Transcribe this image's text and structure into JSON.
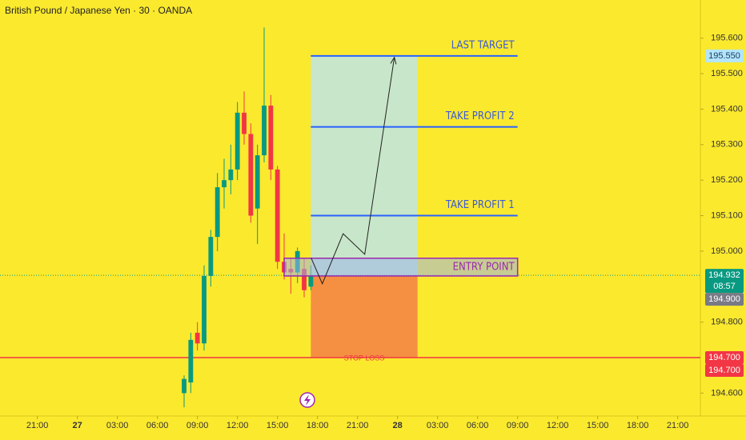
{
  "chart_data": {
    "type": "candlestick",
    "title": "British Pound / Japanese Yen · 30 · OANDA",
    "x": [
      8,
      8.5,
      9,
      9.5,
      10,
      10.5,
      11,
      11.5,
      12,
      12.5,
      13,
      13.5,
      14,
      14.5,
      15,
      15.5,
      16,
      16.5,
      17,
      17.5
    ],
    "open": [
      194.6,
      194.63,
      194.77,
      194.74,
      194.93,
      195.04,
      195.18,
      195.2,
      195.23,
      195.39,
      195.33,
      195.12,
      195.27,
      195.41,
      195.23,
      194.97,
      194.95,
      194.94,
      194.95,
      194.9
    ],
    "high": [
      194.65,
      194.77,
      194.8,
      194.96,
      195.06,
      195.22,
      195.26,
      195.3,
      195.42,
      195.45,
      195.36,
      195.3,
      195.63,
      195.44,
      195.24,
      195.05,
      194.98,
      195.01,
      194.98,
      194.96
    ],
    "low": [
      194.56,
      194.6,
      194.72,
      194.72,
      194.9,
      195.0,
      195.12,
      195.16,
      195.2,
      195.3,
      195.08,
      195.02,
      195.25,
      195.2,
      194.95,
      194.92,
      194.88,
      194.91,
      194.87,
      194.89
    ],
    "close": [
      194.64,
      194.75,
      194.74,
      194.93,
      195.04,
      195.18,
      195.2,
      195.23,
      195.39,
      195.33,
      195.1,
      195.27,
      195.41,
      195.23,
      194.97,
      194.94,
      194.94,
      195.0,
      194.89,
      194.93
    ],
    "up_color": "#089981",
    "down_color": "#f23645",
    "xlim": [
      -5.8,
      46.7
    ],
    "xticks": [
      {
        "value": -3,
        "label": "21:00"
      },
      {
        "value": 0,
        "label": "27"
      },
      {
        "value": 3,
        "label": "03:00"
      },
      {
        "value": 6,
        "label": "06:00"
      },
      {
        "value": 9,
        "label": "09:00"
      },
      {
        "value": 12,
        "label": "12:00"
      },
      {
        "value": 15,
        "label": "15:00"
      },
      {
        "value": 18,
        "label": "18:00"
      },
      {
        "value": 21,
        "label": "21:00"
      },
      {
        "value": 24,
        "label": "28"
      },
      {
        "value": 27,
        "label": "03:00"
      },
      {
        "value": 30,
        "label": "06:00"
      },
      {
        "value": 33,
        "label": "09:00"
      },
      {
        "value": 36,
        "label": "12:00"
      },
      {
        "value": 39,
        "label": "15:00"
      },
      {
        "value": 42,
        "label": "18:00"
      },
      {
        "value": 45,
        "label": "21:00"
      }
    ],
    "ylim": [
      194.5355,
      195.7075
    ],
    "yticks": [
      {
        "value": 195.6,
        "label": "195.600"
      },
      {
        "value": 195.5,
        "label": "195.500"
      },
      {
        "value": 195.4,
        "label": "195.400"
      },
      {
        "value": 195.3,
        "label": "195.300"
      },
      {
        "value": 195.2,
        "label": "195.200"
      },
      {
        "value": 195.1,
        "label": "195.100"
      },
      {
        "value": 195.0,
        "label": "195.000"
      },
      {
        "value": 194.8,
        "label": "194.800"
      },
      {
        "value": 194.6,
        "label": "194.600"
      }
    ],
    "price_labels": [
      {
        "value": 195.55,
        "label": "195.550",
        "color": "#b3e5fc",
        "text_color": "#1a3a5a"
      },
      {
        "value": 194.932,
        "label": "194.932",
        "countdown": "08:57",
        "color": "#089981",
        "text_color": "#ffffff"
      },
      {
        "value": 194.9,
        "label": "194.900",
        "color": "#787b86",
        "text_color": "#ffffff"
      },
      {
        "value": 194.7,
        "label": "194.700",
        "color": "#f23645",
        "text_color": "#ffffff"
      },
      {
        "value": 194.7,
        "label": "194.700",
        "color": "#f23645",
        "text_color": "#ffffff"
      }
    ],
    "current_price": 194.932,
    "profit_zone": {
      "x": [
        17.5,
        25.5
      ],
      "y": [
        194.93,
        195.55
      ],
      "color": "#c8e6c9"
    },
    "loss_zone": {
      "x": [
        17.5,
        25.5
      ],
      "y": [
        194.7,
        194.93
      ],
      "color": "#f59042"
    },
    "entry_box": {
      "x": [
        15.5,
        33
      ],
      "y": [
        194.93,
        194.98
      ],
      "color": "#9c27b0",
      "label": "ENTRY POINT"
    },
    "target_lines": [
      {
        "label": "LAST TARGET",
        "value": 195.55
      },
      {
        "label": "TAKE PROFIT 2",
        "value": 195.35
      },
      {
        "label": "TAKE PROFIT 1",
        "value": 195.1
      }
    ],
    "target_line_x": [
      17.5,
      33
    ],
    "target_color": "#2962ff",
    "stop_loss": {
      "label": "STOP LOSS",
      "value": 194.7,
      "color": "#f23645"
    },
    "projection": {
      "x": [
        17.52,
        18.36,
        19.92,
        21.54,
        23.76
      ],
      "y": [
        194.981,
        194.908,
        195.049,
        194.991,
        195.546
      ]
    }
  }
}
